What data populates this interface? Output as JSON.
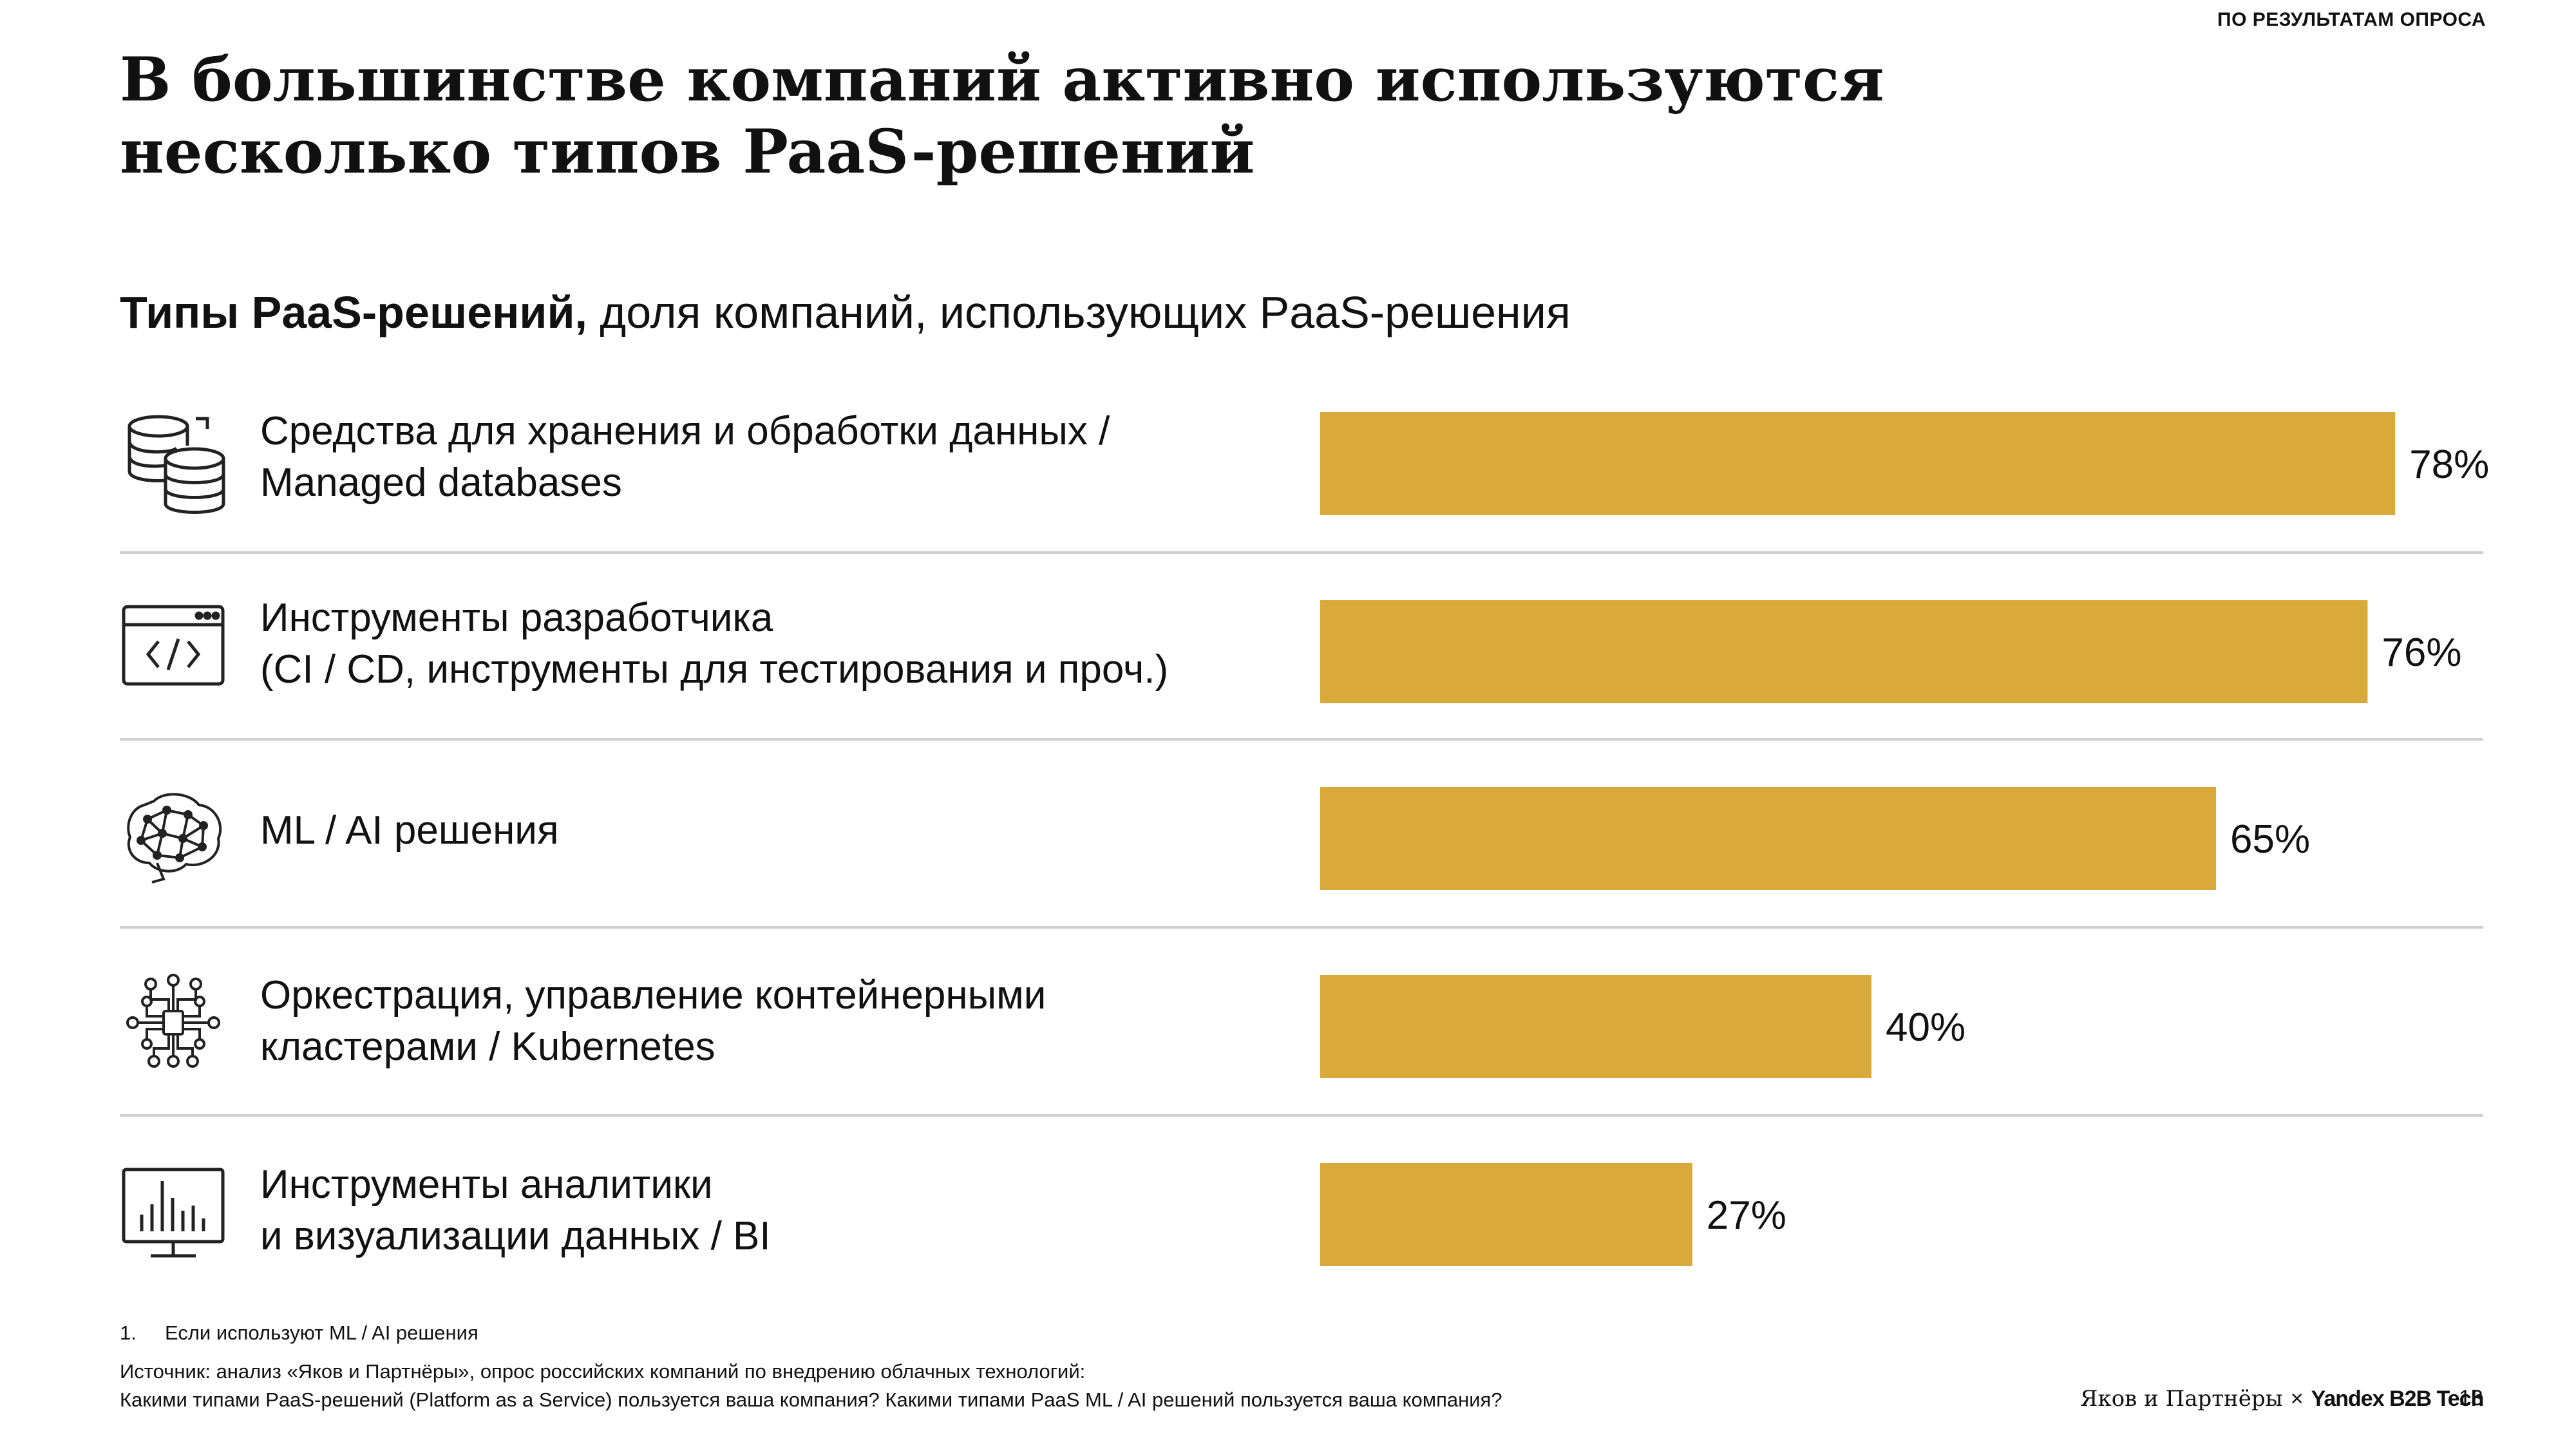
{
  "header": {
    "tag": "ПО РЕЗУЛЬТАТАМ ОПРОСА",
    "title_line1": "В большинстве компаний активно используются",
    "title_line2": "несколько типов PaaS-решений"
  },
  "subtitle": {
    "bold": "Типы PaaS-решений,",
    "regular": " доля компаний, использующих PaaS-решения"
  },
  "rows": [
    {
      "line1": "Средства для хранения и обработки данных /",
      "line2": "Managed databases",
      "icon": "database-icon"
    },
    {
      "line1": "Инструменты разработчика",
      "line2": "(CI / CD, инструменты для тестирования и проч.)",
      "icon": "code-window-icon"
    },
    {
      "line1": "ML / AI решения",
      "line2": "",
      "icon": "brain-network-icon"
    },
    {
      "line1": "Оркестрация, управление контейнерными",
      "line2": "кластерами / Kubernetes",
      "icon": "circuit-chip-icon"
    },
    {
      "line1": "Инструменты аналитики",
      "line2": "и визуализации данных / BI",
      "icon": "bar-monitor-icon"
    }
  ],
  "chart_data": {
    "type": "bar",
    "orientation": "horizontal",
    "title": "Типы PaaS-решений, доля компаний, использующих PaaS-решения",
    "categories": [
      "Средства для хранения и обработки данных / Managed databases",
      "Инструменты разработчика (CI / CD, инструменты для тестирования и проч.)",
      "ML / AI решения",
      "Оркестрация, управление контейнерными кластерами / Kubernetes",
      "Инструменты аналитики и визуализации данных / BI"
    ],
    "values": [
      78,
      76,
      65,
      40,
      27
    ],
    "value_labels": [
      "78%",
      "76%",
      "65%",
      "40%",
      "27%"
    ],
    "unit": "%",
    "xlim": [
      0,
      100
    ],
    "bar_color": "#DAA93C"
  },
  "footnote": {
    "number": "1.",
    "text": "Если используют ML / AI решения"
  },
  "source": {
    "line1": "Источник: анализ «Яков и Партнёры», опрос российских компаний по внедрению облачных технологий:",
    "line2": "Какими типами PaaS-решений (Platform as a Service) пользуется ваша компания? Какими типами PaaS ML / AI решений пользуется ваша компания?"
  },
  "footer": {
    "logo_left": "Яков и Партнёры",
    "logo_sep": "×",
    "logo_right": "Yandex B2B Tech",
    "page_number": "13"
  }
}
